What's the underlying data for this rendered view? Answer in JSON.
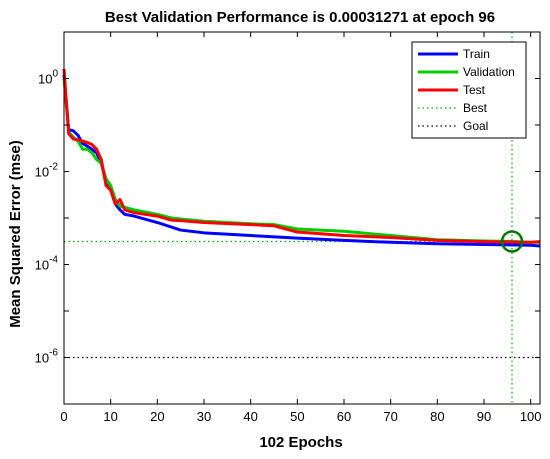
{
  "chart_data": {
    "type": "line",
    "title": "Best Validation Performance is 0.00031271 at epoch 96",
    "xlabel": "102 Epochs",
    "ylabel": "Mean Squared Error  (mse)",
    "xlim": [
      0,
      102
    ],
    "ylim": [
      1e-07,
      10
    ],
    "y_scale": "log",
    "x_ticks": [
      0,
      10,
      20,
      30,
      40,
      50,
      60,
      70,
      80,
      90,
      100
    ],
    "y_ticks": [
      {
        "base": "10",
        "exp": "0",
        "value": 1
      },
      {
        "base": "10",
        "exp": "-2",
        "value": 0.01
      },
      {
        "base": "10",
        "exp": "-4",
        "value": 0.0001
      },
      {
        "base": "10",
        "exp": "-6",
        "value": 1e-06
      }
    ],
    "legend_position": "top-right",
    "series": [
      {
        "name": "Train",
        "color": "#0000ff",
        "x": [
          0,
          1,
          2,
          3,
          4,
          5,
          6,
          7,
          8,
          9,
          10,
          11,
          12,
          13,
          15,
          20,
          25,
          30,
          40,
          50,
          60,
          70,
          80,
          90,
          100,
          102
        ],
        "y": [
          1.2,
          0.08,
          0.075,
          0.06,
          0.04,
          0.035,
          0.03,
          0.025,
          0.015,
          0.006,
          0.004,
          0.002,
          0.0015,
          0.0012,
          0.0011,
          0.0008,
          0.00055,
          0.00048,
          0.00042,
          0.00037,
          0.00033,
          0.0003,
          0.00028,
          0.00027,
          0.00026,
          0.00025
        ]
      },
      {
        "name": "Validation",
        "color": "#00cc00",
        "x": [
          0,
          1,
          2,
          3,
          4,
          5,
          6,
          7,
          8,
          9,
          10,
          11,
          12,
          13,
          15,
          20,
          23,
          25,
          30,
          40,
          45,
          50,
          60,
          70,
          80,
          90,
          96,
          100,
          102
        ],
        "y": [
          1.0,
          0.07,
          0.055,
          0.045,
          0.03,
          0.03,
          0.025,
          0.018,
          0.015,
          0.007,
          0.005,
          0.0025,
          0.0018,
          0.0017,
          0.0015,
          0.0012,
          0.001,
          0.00095,
          0.00085,
          0.00075,
          0.00072,
          0.00058,
          0.00052,
          0.00042,
          0.00034,
          0.00032,
          0.00031271,
          0.0003,
          0.0003
        ]
      },
      {
        "name": "Test",
        "color": "#ff0000",
        "x": [
          0,
          1,
          2,
          3,
          4,
          5,
          6,
          7,
          8,
          9,
          10,
          11,
          12,
          13,
          15,
          20,
          23,
          25,
          30,
          40,
          45,
          50,
          60,
          70,
          80,
          90,
          100,
          102
        ],
        "y": [
          1.6,
          0.065,
          0.05,
          0.048,
          0.045,
          0.042,
          0.038,
          0.03,
          0.018,
          0.005,
          0.004,
          0.002,
          0.0025,
          0.0015,
          0.0013,
          0.0011,
          0.0009,
          0.00088,
          0.0008,
          0.00072,
          0.00068,
          0.0005,
          0.00042,
          0.00038,
          0.00033,
          0.00031,
          0.0003,
          0.00031
        ]
      }
    ],
    "best": {
      "name": "Best",
      "epoch": 96,
      "value": 0.00031271,
      "color": "#00aa00"
    },
    "goal": {
      "name": "Goal",
      "value": 1e-06,
      "color": "#000000"
    }
  }
}
